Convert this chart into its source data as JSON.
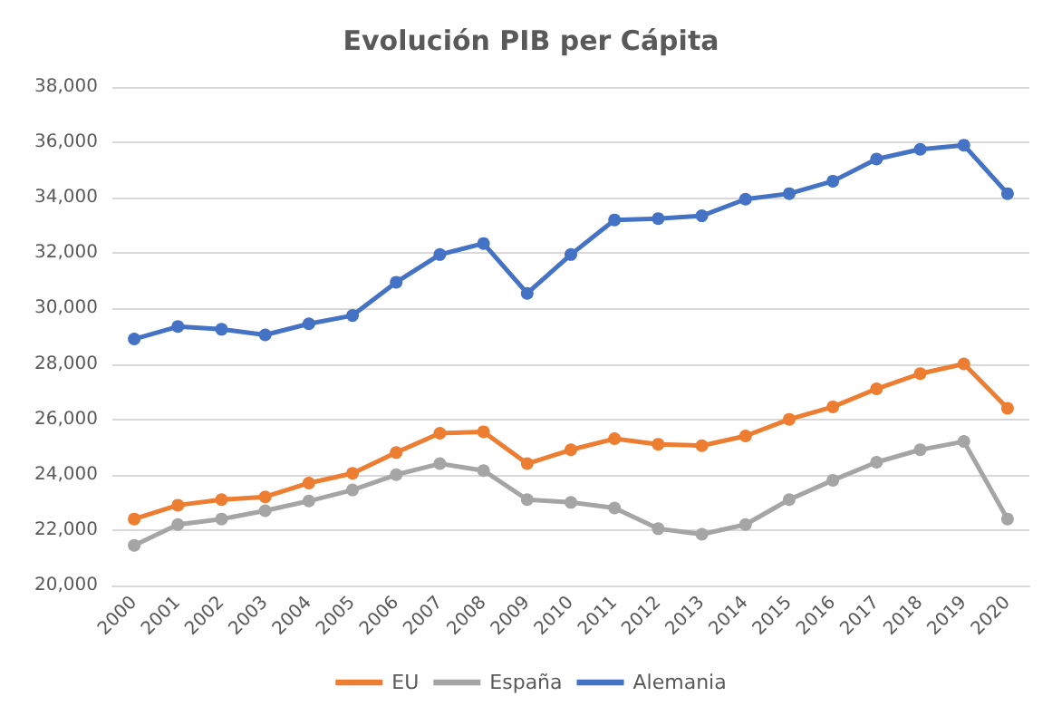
{
  "chart_data": {
    "type": "line",
    "title": "Evolución PIB per Cápita",
    "categories": [
      "2000",
      "2001",
      "2002",
      "2003",
      "2004",
      "2005",
      "2006",
      "2007",
      "2008",
      "2009",
      "2010",
      "2011",
      "2012",
      "2013",
      "2014",
      "2015",
      "2016",
      "2017",
      "2018",
      "2019",
      "2020"
    ],
    "series": [
      {
        "name": "EU",
        "color": "#ed7d31",
        "values": [
          22400,
          22900,
          23100,
          23200,
          23700,
          24050,
          24800,
          25500,
          25550,
          24400,
          24900,
          25300,
          25100,
          25050,
          25400,
          26000,
          26450,
          27100,
          27650,
          28000,
          26400
        ]
      },
      {
        "name": "España",
        "color": "#a5a5a5",
        "values": [
          21450,
          22200,
          22400,
          22700,
          23050,
          23450,
          24000,
          24400,
          24150,
          23100,
          23000,
          22800,
          22050,
          21850,
          22200,
          23100,
          23800,
          24450,
          24900,
          25200,
          22400
        ]
      },
      {
        "name": "Alemania",
        "color": "#4472c4",
        "values": [
          28900,
          29350,
          29250,
          29050,
          29450,
          29750,
          30950,
          31950,
          32350,
          30550,
          31950,
          33200,
          33250,
          33350,
          33950,
          34150,
          34600,
          35400,
          35750,
          35900,
          34150
        ]
      }
    ],
    "ylim": [
      20000,
      38000
    ],
    "yticks": [
      {
        "value": 20000,
        "label": "20,000"
      },
      {
        "value": 22000,
        "label": "22,000"
      },
      {
        "value": 24000,
        "label": "24,000"
      },
      {
        "value": 26000,
        "label": "26,000"
      },
      {
        "value": 28000,
        "label": "28,000"
      },
      {
        "value": 30000,
        "label": "30,000"
      },
      {
        "value": 32000,
        "label": "32,000"
      },
      {
        "value": 34000,
        "label": "34,000"
      },
      {
        "value": 36000,
        "label": "36,000"
      },
      {
        "value": 38000,
        "label": "38,000"
      }
    ],
    "grid": "y",
    "legend": "bottom",
    "marker": "circle",
    "line_style": "solid"
  }
}
